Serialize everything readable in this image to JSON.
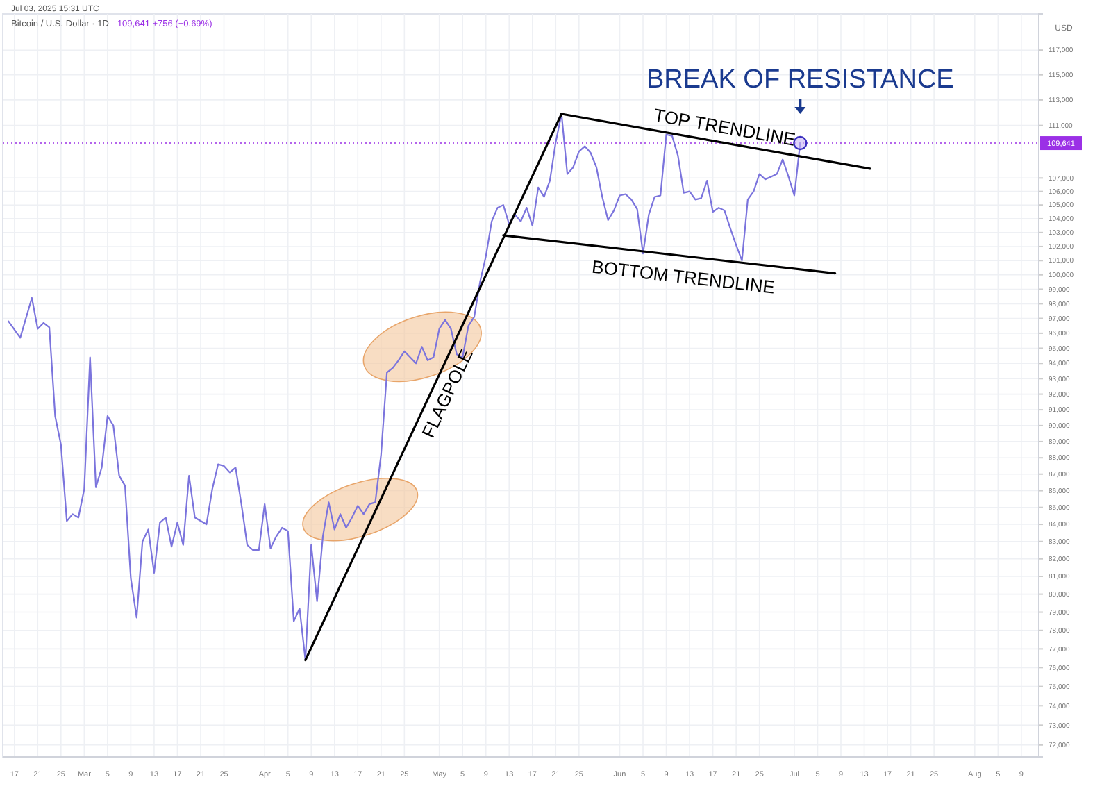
{
  "chart_data": {
    "type": "line",
    "title": "Bitcoin / U.S. Dollar · 1D",
    "subtitle": "109,641 +756 (+0.69%)",
    "ylabel": "USD",
    "log": true,
    "grid": true,
    "annotations": [
      "Jul 03, 2025 15:31 UTC",
      {
        "text": "BREAK OF RESISTANCE",
        "x": "2025-07-02",
        "y": 109641
      }
    ],
    "xlim": [
      "2025-02-15",
      "2025-08-12"
    ],
    "xticks": [
      {
        "value": "2025-02-17",
        "label": "17"
      },
      {
        "value": "2025-02-21",
        "label": "21"
      },
      {
        "value": "2025-02-25",
        "label": "25"
      },
      {
        "value": "2025-03-01",
        "label": "Mar"
      },
      {
        "value": "2025-03-05",
        "label": "5"
      },
      {
        "value": "2025-03-09",
        "label": "9"
      },
      {
        "value": "2025-03-13",
        "label": "13"
      },
      {
        "value": "2025-03-17",
        "label": "17"
      },
      {
        "value": "2025-03-21",
        "label": "21"
      },
      {
        "value": "2025-03-25",
        "label": "25"
      },
      {
        "value": "2025-04-01",
        "label": "Apr"
      },
      {
        "value": "2025-04-05",
        "label": "5"
      },
      {
        "value": "2025-04-09",
        "label": "9"
      },
      {
        "value": "2025-04-13",
        "label": "13"
      },
      {
        "value": "2025-04-17",
        "label": "17"
      },
      {
        "value": "2025-04-21",
        "label": "21"
      },
      {
        "value": "2025-04-25",
        "label": "25"
      },
      {
        "value": "2025-05-01",
        "label": "May"
      },
      {
        "value": "2025-05-05",
        "label": "5"
      },
      {
        "value": "2025-05-09",
        "label": "9"
      },
      {
        "value": "2025-05-13",
        "label": "13"
      },
      {
        "value": "2025-05-17",
        "label": "17"
      },
      {
        "value": "2025-05-21",
        "label": "21"
      },
      {
        "value": "2025-05-25",
        "label": "25"
      },
      {
        "value": "2025-06-01",
        "label": "Jun"
      },
      {
        "value": "2025-06-05",
        "label": "5"
      },
      {
        "value": "2025-06-09",
        "label": "9"
      },
      {
        "value": "2025-06-13",
        "label": "13"
      },
      {
        "value": "2025-06-17",
        "label": "17"
      },
      {
        "value": "2025-06-21",
        "label": "21"
      },
      {
        "value": "2025-06-25",
        "label": "25"
      },
      {
        "value": "2025-07-01",
        "label": "Jul"
      },
      {
        "value": "2025-07-05",
        "label": "5"
      },
      {
        "value": "2025-07-09",
        "label": "9"
      },
      {
        "value": "2025-07-13",
        "label": "13"
      },
      {
        "value": "2025-07-17",
        "label": "17"
      },
      {
        "value": "2025-07-21",
        "label": "21"
      },
      {
        "value": "2025-07-25",
        "label": "25"
      },
      {
        "value": "2025-08-01",
        "label": "Aug"
      },
      {
        "value": "2025-08-05",
        "label": "5"
      },
      {
        "value": "2025-08-09",
        "label": "9"
      }
    ],
    "ylim": [
      71400,
      120000
    ],
    "yticks": [
      {
        "value": 117000,
        "label": "117,000"
      },
      {
        "value": 115000,
        "label": "115,000"
      },
      {
        "value": 113000,
        "label": "113,000"
      },
      {
        "value": 111000,
        "label": "111,000"
      },
      {
        "value": 107000,
        "label": "107,000"
      },
      {
        "value": 106000,
        "label": "106,000"
      },
      {
        "value": 105000,
        "label": "105,000"
      },
      {
        "value": 104000,
        "label": "104,000"
      },
      {
        "value": 103000,
        "label": "103,000"
      },
      {
        "value": 102000,
        "label": "102,000"
      },
      {
        "value": 101000,
        "label": "101,000"
      },
      {
        "value": 100000,
        "label": "100,000"
      },
      {
        "value": 99000,
        "label": "99,000"
      },
      {
        "value": 98000,
        "label": "98,000"
      },
      {
        "value": 97000,
        "label": "97,000"
      },
      {
        "value": 96000,
        "label": "96,000"
      },
      {
        "value": 95000,
        "label": "95,000"
      },
      {
        "value": 94000,
        "label": "94,000"
      },
      {
        "value": 93000,
        "label": "93,000"
      },
      {
        "value": 92000,
        "label": "92,000"
      },
      {
        "value": 91000,
        "label": "91,000"
      },
      {
        "value": 90000,
        "label": "90,000"
      },
      {
        "value": 89000,
        "label": "89,000"
      },
      {
        "value": 88000,
        "label": "88,000"
      },
      {
        "value": 87000,
        "label": "87,000"
      },
      {
        "value": 86000,
        "label": "86,000"
      },
      {
        "value": 85000,
        "label": "85,000"
      },
      {
        "value": 84000,
        "label": "84,000"
      },
      {
        "value": 83000,
        "label": "83,000"
      },
      {
        "value": 82000,
        "label": "82,000"
      },
      {
        "value": 81000,
        "label": "81,000"
      },
      {
        "value": 80000,
        "label": "80,000"
      },
      {
        "value": 79000,
        "label": "79,000"
      },
      {
        "value": 78000,
        "label": "78,000"
      },
      {
        "value": 77000,
        "label": "77,000"
      },
      {
        "value": 76000,
        "label": "76,000"
      },
      {
        "value": 75000,
        "label": "75,000"
      },
      {
        "value": 74000,
        "label": "74,000"
      },
      {
        "value": 73000,
        "label": "73,000"
      },
      {
        "value": 72000,
        "label": "72,000"
      }
    ],
    "ref_lines": [
      {
        "axis": "y",
        "value": 109641,
        "label": "109,641",
        "color": "#9b30e6",
        "line_style": "dotted"
      }
    ],
    "series": [
      {
        "color": "#7b74dd",
        "x": [
          "2025-02-16",
          "2025-02-18",
          "2025-02-20",
          "2025-02-21",
          "2025-02-22",
          "2025-02-23",
          "2025-02-24",
          "2025-02-25",
          "2025-02-26",
          "2025-02-27",
          "2025-02-28",
          "2025-03-01",
          "2025-03-02",
          "2025-03-03",
          "2025-03-04",
          "2025-03-05",
          "2025-03-06",
          "2025-03-07",
          "2025-03-08",
          "2025-03-09",
          "2025-03-10",
          "2025-03-11",
          "2025-03-12",
          "2025-03-13",
          "2025-03-14",
          "2025-03-15",
          "2025-03-16",
          "2025-03-17",
          "2025-03-18",
          "2025-03-19",
          "2025-03-20",
          "2025-03-22",
          "2025-03-23",
          "2025-03-24",
          "2025-03-25",
          "2025-03-26",
          "2025-03-27",
          "2025-03-28",
          "2025-03-29",
          "2025-03-30",
          "2025-03-31",
          "2025-04-01",
          "2025-04-02",
          "2025-04-03",
          "2025-04-04",
          "2025-04-05",
          "2025-04-06",
          "2025-04-07",
          "2025-04-08",
          "2025-04-09",
          "2025-04-10",
          "2025-04-11",
          "2025-04-12",
          "2025-04-13",
          "2025-04-14",
          "2025-04-15",
          "2025-04-16",
          "2025-04-17",
          "2025-04-18",
          "2025-04-19",
          "2025-04-20",
          "2025-04-21",
          "2025-04-22",
          "2025-04-23",
          "2025-04-24",
          "2025-04-25",
          "2025-04-26",
          "2025-04-27",
          "2025-04-28",
          "2025-04-29",
          "2025-04-30",
          "2025-05-01",
          "2025-05-02",
          "2025-05-03",
          "2025-05-04",
          "2025-05-05",
          "2025-05-06",
          "2025-05-07",
          "2025-05-08",
          "2025-05-09",
          "2025-05-10",
          "2025-05-11",
          "2025-05-12",
          "2025-05-13",
          "2025-05-14",
          "2025-05-15",
          "2025-05-16",
          "2025-05-17",
          "2025-05-18",
          "2025-05-19",
          "2025-05-20",
          "2025-05-21",
          "2025-05-22",
          "2025-05-23",
          "2025-05-24",
          "2025-05-25",
          "2025-05-26",
          "2025-05-27",
          "2025-05-28",
          "2025-05-29",
          "2025-05-30",
          "2025-05-31",
          "2025-06-01",
          "2025-06-02",
          "2025-06-03",
          "2025-06-04",
          "2025-06-05",
          "2025-06-06",
          "2025-06-07",
          "2025-06-08",
          "2025-06-09",
          "2025-06-10",
          "2025-06-11",
          "2025-06-12",
          "2025-06-13",
          "2025-06-14",
          "2025-06-15",
          "2025-06-16",
          "2025-06-17",
          "2025-06-18",
          "2025-06-19",
          "2025-06-20",
          "2025-06-21",
          "2025-06-22",
          "2025-06-23",
          "2025-06-24",
          "2025-06-25",
          "2025-06-26",
          "2025-06-27",
          "2025-06-28",
          "2025-06-29",
          "2025-06-30",
          "2025-07-01",
          "2025-07-02"
        ],
        "values": [
          96800,
          95700,
          98400,
          96300,
          96700,
          96400,
          90600,
          88800,
          84200,
          84600,
          84400,
          86100,
          94400,
          86200,
          87400,
          90600,
          90000,
          86900,
          86300,
          80900,
          78700,
          83000,
          83700,
          81200,
          84100,
          84400,
          82700,
          84100,
          82800,
          86900,
          84400,
          84000,
          86100,
          87600,
          87500,
          87100,
          87400,
          85200,
          82800,
          82500,
          82500,
          85200,
          82600,
          83300,
          83800,
          83600,
          78500,
          79200,
          76400,
          82800,
          79600,
          83300,
          85300,
          83700,
          84600,
          83800,
          84400,
          85100,
          84600,
          85200,
          85300,
          88200,
          93400,
          93700,
          94200,
          94800,
          94400,
          94000,
          95100,
          94200,
          94400,
          96300,
          96900,
          96300,
          94600,
          94400,
          96500,
          97100,
          99500,
          101300,
          103800,
          104800,
          105000,
          103600,
          104300,
          103800,
          104800,
          103500,
          106300,
          105600,
          106800,
          109700,
          111900,
          107300,
          107800,
          109000,
          109400,
          108900,
          107800,
          105600,
          103900,
          104600,
          105700,
          105800,
          105400,
          104700,
          101500,
          104300,
          105600,
          105700,
          110300,
          110200,
          108700,
          105900,
          106000,
          105400,
          105500,
          106800,
          104500,
          104800,
          104600,
          103300,
          102100,
          101000,
          105400,
          106000,
          107300,
          106900,
          107100,
          107300,
          108400,
          107100,
          105700,
          109641
        ]
      },
      {
        "type": "line",
        "name": "FLAGPOLE",
        "color": "#000000",
        "x": [
          "2025-04-08",
          "2025-05-22"
        ],
        "values": [
          76400,
          111900
        ]
      },
      {
        "type": "line",
        "name": "TOP TRENDLINE",
        "color": "#000000",
        "x": [
          "2025-05-22",
          "2025-07-14"
        ],
        "values": [
          111900,
          107700
        ]
      },
      {
        "type": "line",
        "name": "BOTTOM TRENDLINE",
        "color": "#000000",
        "x": [
          "2025-05-12",
          "2025-07-08"
        ],
        "values": [
          102800,
          100100
        ]
      }
    ]
  }
}
